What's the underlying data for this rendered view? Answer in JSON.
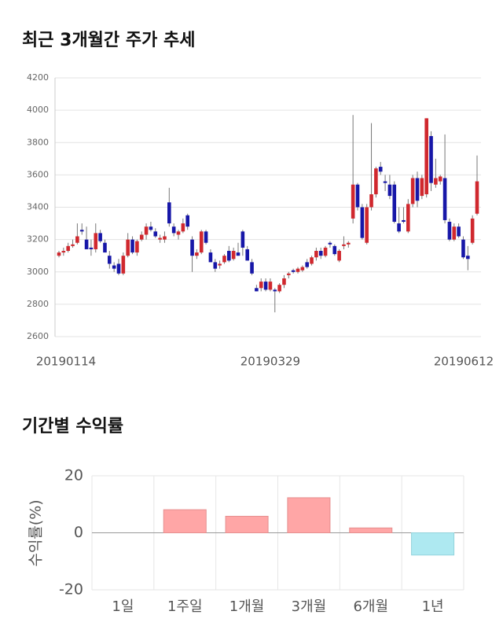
{
  "chart_data": [
    {
      "type": "candlestick",
      "title": "최근 3개월간 주가 추세",
      "categories": [
        "20190114",
        null,
        null,
        null,
        null,
        null,
        null,
        null,
        null,
        null,
        null,
        null,
        null,
        null,
        null,
        null,
        null,
        null,
        null,
        null,
        null,
        null,
        null,
        null,
        null,
        null,
        null,
        null,
        null,
        null,
        null,
        null,
        null,
        null,
        null,
        null,
        null,
        null,
        null,
        null,
        null,
        null,
        null,
        null,
        null,
        null,
        "20190329",
        null,
        null,
        null,
        null,
        null,
        null,
        null,
        null,
        null,
        null,
        null,
        null,
        null,
        null,
        null,
        null,
        null,
        null,
        null,
        null,
        null,
        null,
        null,
        null,
        null,
        null,
        null,
        null,
        null,
        null,
        null,
        null,
        null,
        null,
        null,
        null,
        null,
        null,
        null,
        null,
        null,
        null,
        null,
        null,
        "20190612"
      ],
      "open": [
        3100,
        3120,
        3130,
        3160,
        3180,
        3260,
        3200,
        3150,
        3140,
        3240,
        3180,
        3100,
        3040,
        3050,
        2990,
        3100,
        3200,
        3120,
        3200,
        3230,
        3280,
        3250,
        3200,
        3200,
        3430,
        3280,
        3230,
        3250,
        3350,
        3200,
        3100,
        3120,
        3250,
        3120,
        3060,
        3040,
        3060,
        3130,
        3080,
        3120,
        3250,
        3140,
        3060,
        2900,
        2900,
        2940,
        2890,
        2890,
        2880,
        2920,
        2980,
        3010,
        3000,
        3010,
        3060,
        3050,
        3090,
        3130,
        3100,
        3180,
        3160,
        3070,
        3160,
        3170,
        3330,
        3540,
        3400,
        3180,
        3400,
        3480,
        3650,
        3560,
        3540,
        3540,
        3300,
        3320,
        3250,
        3420,
        3580,
        3470,
        3480,
        3840,
        3540,
        3560,
        3580,
        3310,
        3200,
        3280,
        3200,
        3100,
        3180,
        3360
      ],
      "high": [
        3130,
        3150,
        3180,
        3200,
        3300,
        3300,
        3280,
        3200,
        3300,
        3260,
        3200,
        3130,
        3060,
        3080,
        3120,
        3240,
        3220,
        3200,
        3250,
        3300,
        3310,
        3270,
        3230,
        3250,
        3520,
        3300,
        3260,
        3330,
        3360,
        3220,
        3140,
        3260,
        3260,
        3140,
        3080,
        3070,
        3110,
        3160,
        3150,
        3180,
        3260,
        3160,
        3080,
        2920,
        2960,
        2960,
        2960,
        2900,
        2930,
        2980,
        3000,
        3020,
        3030,
        3040,
        3080,
        3100,
        3150,
        3150,
        3160,
        3190,
        3170,
        3140,
        3220,
        3190,
        3970,
        3550,
        3420,
        3420,
        3920,
        3650,
        3680,
        3600,
        3600,
        3560,
        3400,
        3400,
        3450,
        3600,
        3620,
        3600,
        3950,
        3870,
        3700,
        3600,
        3850,
        3330,
        3300,
        3300,
        3220,
        3160,
        3350,
        3720
      ],
      "low": [
        3090,
        3100,
        3120,
        3150,
        3170,
        3230,
        3140,
        3100,
        3120,
        3180,
        3120,
        3020,
        3000,
        2980,
        2980,
        3090,
        3110,
        3100,
        3190,
        3200,
        3250,
        3210,
        3180,
        3180,
        3280,
        3220,
        3200,
        3240,
        3260,
        3000,
        3080,
        3110,
        3170,
        3060,
        3000,
        3020,
        3050,
        3060,
        3070,
        3100,
        3100,
        3070,
        2980,
        2880,
        2880,
        2880,
        2880,
        2750,
        2870,
        2900,
        2960,
        2990,
        2990,
        3000,
        3020,
        3040,
        3070,
        3080,
        3090,
        3150,
        3100,
        3060,
        3140,
        3150,
        3300,
        3380,
        3200,
        3170,
        3380,
        3460,
        3600,
        3500,
        3450,
        3300,
        3240,
        3300,
        3240,
        3400,
        3400,
        3450,
        3460,
        3500,
        3520,
        3540,
        3300,
        3190,
        3190,
        3210,
        3080,
        3010,
        3170,
        3350
      ],
      "close": [
        3120,
        3130,
        3160,
        3170,
        3220,
        3250,
        3140,
        3140,
        3240,
        3190,
        3120,
        3050,
        3020,
        2990,
        3100,
        3200,
        3120,
        3190,
        3230,
        3280,
        3260,
        3220,
        3210,
        3220,
        3300,
        3240,
        3250,
        3300,
        3280,
        3100,
        3120,
        3250,
        3180,
        3060,
        3020,
        3050,
        3100,
        3070,
        3130,
        3100,
        3150,
        3070,
        2990,
        2880,
        2940,
        2890,
        2940,
        2880,
        2920,
        2960,
        2990,
        3000,
        3020,
        3030,
        3030,
        3090,
        3130,
        3100,
        3150,
        3170,
        3110,
        3130,
        3170,
        3180,
        3540,
        3400,
        3210,
        3400,
        3480,
        3640,
        3620,
        3550,
        3470,
        3310,
        3250,
        3310,
        3420,
        3580,
        3440,
        3580,
        3950,
        3550,
        3580,
        3590,
        3320,
        3200,
        3280,
        3220,
        3090,
        3080,
        3330,
        3560
      ],
      "up_color": "#d0282e",
      "down_color": "#1717a8",
      "ylim": [
        2600,
        4200
      ],
      "yticks": [
        2600,
        2800,
        3000,
        3200,
        3400,
        3600,
        3800,
        4000,
        4200
      ],
      "grid": true
    },
    {
      "type": "bar",
      "title": "기간별 수익률",
      "y_label": "수익률(%)",
      "categories": [
        "1일",
        "1주일",
        "1개월",
        "3개월",
        "6개월",
        "1년"
      ],
      "values": [
        0,
        8.1,
        5.8,
        12.3,
        1.7,
        -7.8
      ],
      "positive_color": "#ffa6a6",
      "negative_color": "#aee9f1",
      "ylim": [
        -20,
        20
      ],
      "yticks": [
        -20,
        0,
        20
      ],
      "grid": true
    }
  ]
}
